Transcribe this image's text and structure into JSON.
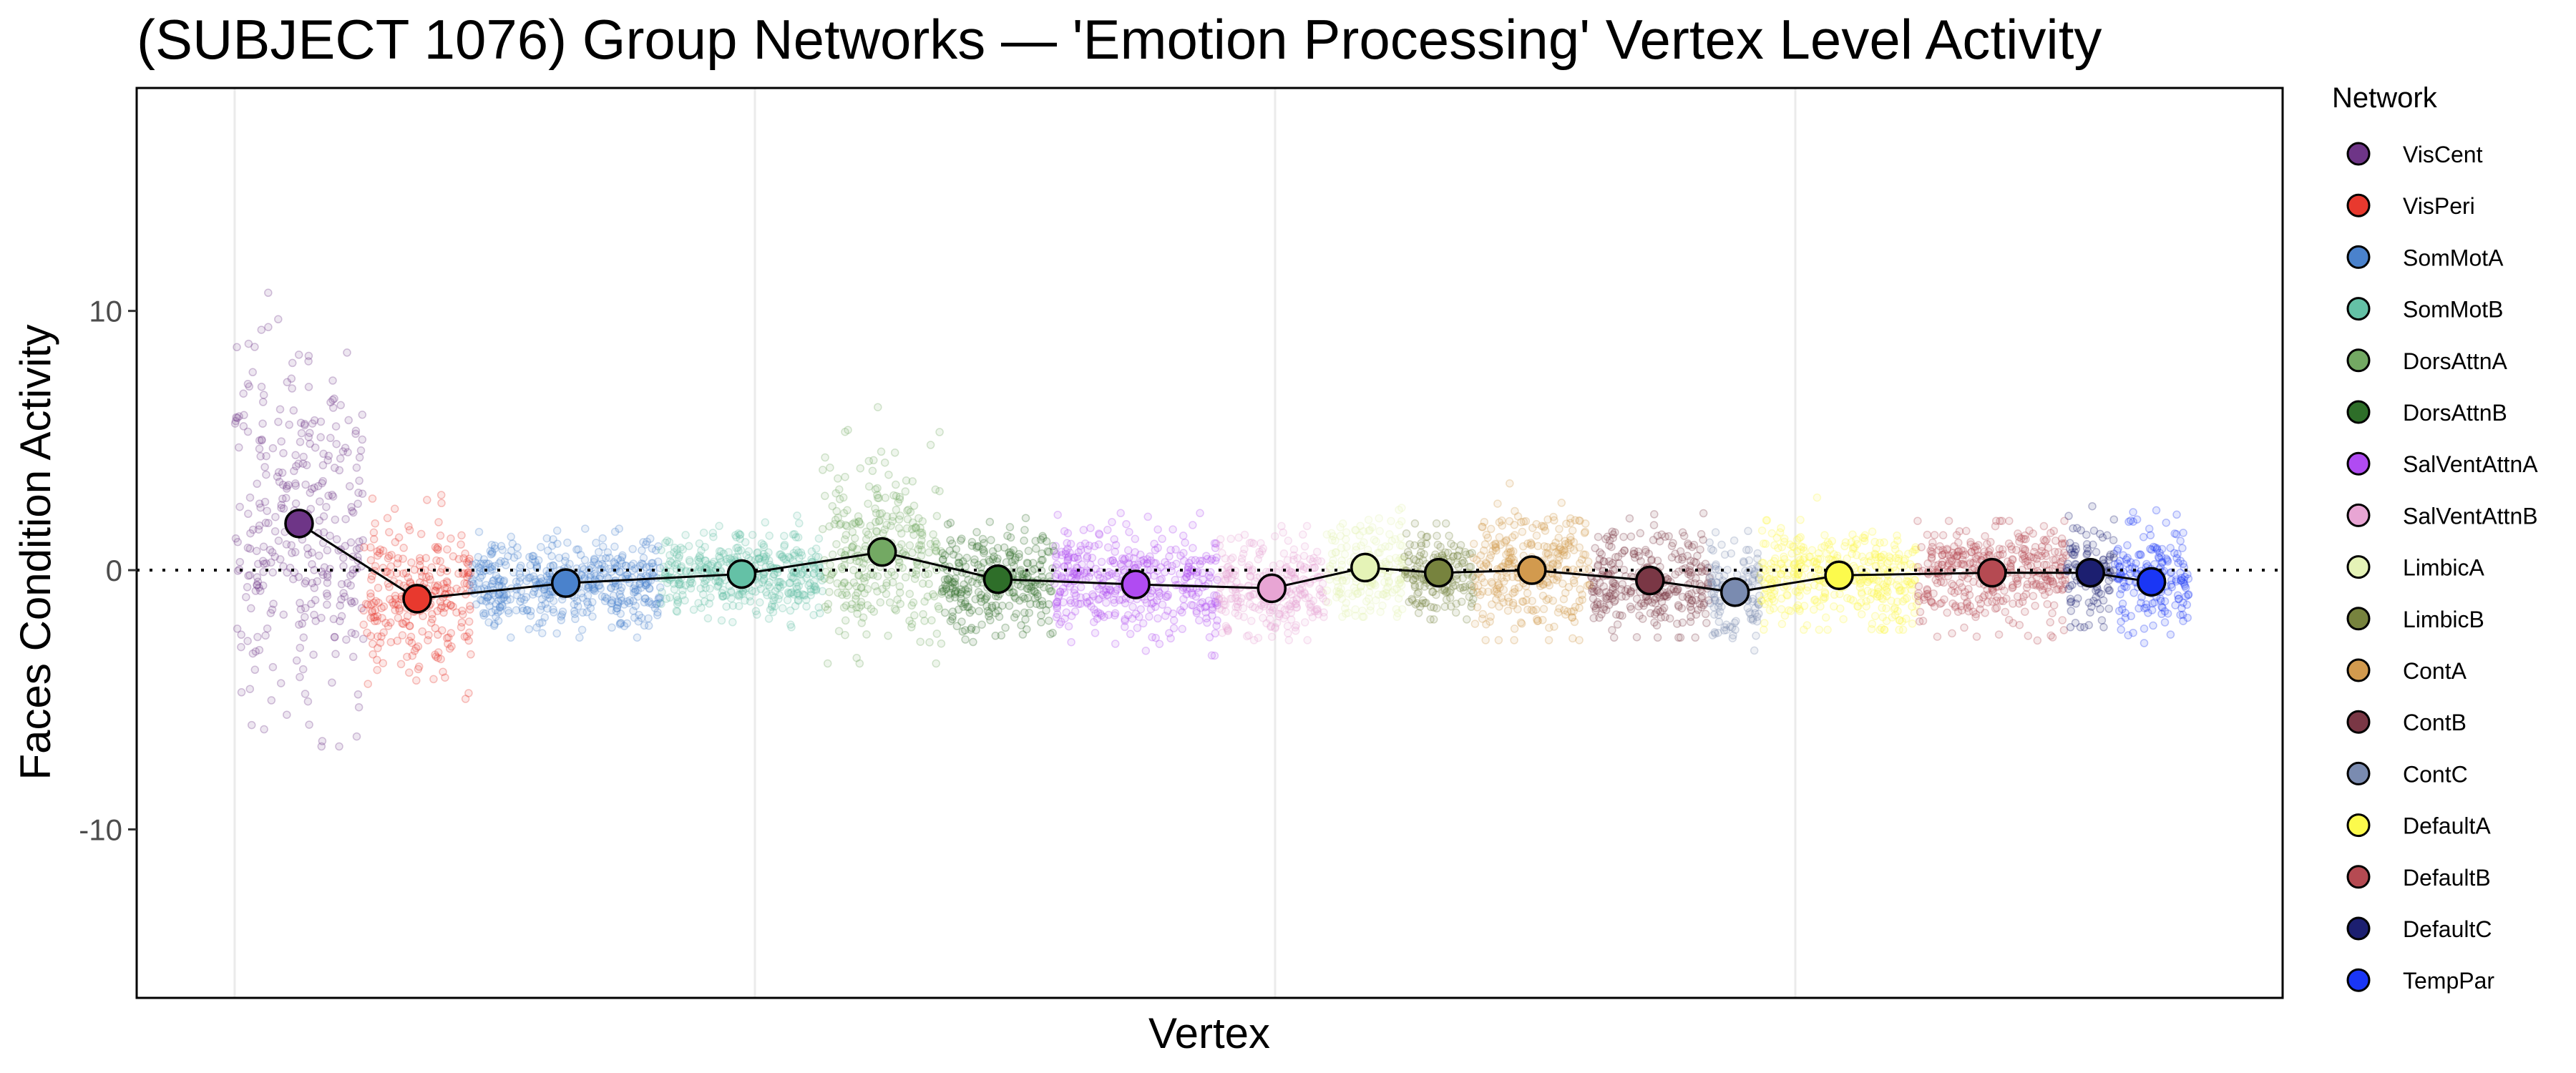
{
  "chart_data": {
    "type": "scatter",
    "title": "(SUBJECT 1076) Group Networks — 'Emotion Processing' Vertex Level Activity",
    "xlabel": "Vertex",
    "ylabel": "Faces Condition Activity",
    "xlim": [
      -1884,
      39367
    ],
    "ylim": [
      -16.5,
      18.6
    ],
    "y_ticks": [
      10,
      0,
      -10
    ],
    "y_tick_labels": [
      "10",
      "0",
      "-10"
    ],
    "x_gridlines": [
      0,
      10000,
      20000,
      30000
    ],
    "reference_line": {
      "y": 0,
      "style": "dotted"
    },
    "grid": "vertical major only",
    "legend": {
      "title": "Network",
      "position": "right"
    },
    "series": [
      {
        "name": "VisCent",
        "color": "#6E3587",
        "vertex_range": [
          0,
          2476
        ],
        "mean": 1.8,
        "sd": 3.6,
        "min": -6.8,
        "max": 10.7
      },
      {
        "name": "VisPeri",
        "color": "#E8392E",
        "vertex_range": [
          2476,
          4540
        ],
        "mean": -1.1,
        "sd": 1.5,
        "min": -5.5,
        "max": 2.9
      },
      {
        "name": "SomMotA",
        "color": "#4A82CC",
        "vertex_range": [
          4540,
          8190
        ],
        "mean": -0.5,
        "sd": 0.8,
        "min": -2.6,
        "max": 1.6
      },
      {
        "name": "SomMotB",
        "color": "#64C1A6",
        "vertex_range": [
          8190,
          11300
        ],
        "mean": -0.15,
        "sd": 0.8,
        "min": -2.2,
        "max": 2.1
      },
      {
        "name": "DorsAttnA",
        "color": "#73A963",
        "vertex_range": [
          11300,
          13590
        ],
        "mean": 0.7,
        "sd": 1.8,
        "min": -3.6,
        "max": 6.7
      },
      {
        "name": "DorsAttnB",
        "color": "#2E6E29",
        "vertex_range": [
          13590,
          15750
        ],
        "mean": -0.35,
        "sd": 1.0,
        "min": -2.8,
        "max": 2.1
      },
      {
        "name": "SalVentAttnA",
        "color": "#B04BF2",
        "vertex_range": [
          15750,
          18890
        ],
        "mean": -0.55,
        "sd": 1.0,
        "min": -3.3,
        "max": 2.2
      },
      {
        "name": "SalVentAttnB",
        "color": "#E8A5D4",
        "vertex_range": [
          18890,
          20980
        ],
        "mean": -0.7,
        "sd": 0.9,
        "min": -2.7,
        "max": 1.7
      },
      {
        "name": "LimbicA",
        "color": "#E5F3B7",
        "vertex_range": [
          20980,
          22480
        ],
        "mean": 0.1,
        "sd": 1.0,
        "min": -1.8,
        "max": 5.0
      },
      {
        "name": "LimbicB",
        "color": "#77833E",
        "vertex_range": [
          22480,
          23810
        ],
        "mean": -0.1,
        "sd": 0.8,
        "min": -1.9,
        "max": 1.8
      },
      {
        "name": "ContA",
        "color": "#D29A4E",
        "vertex_range": [
          23810,
          26060
        ],
        "mean": 0.0,
        "sd": 1.2,
        "min": -2.7,
        "max": 3.6
      },
      {
        "name": "ContB",
        "color": "#7A3745",
        "vertex_range": [
          26060,
          28350
        ],
        "mean": -0.4,
        "sd": 1.0,
        "min": -2.6,
        "max": 2.3
      },
      {
        "name": "ContC",
        "color": "#7A8BB0",
        "vertex_range": [
          28350,
          29330
        ],
        "mean": -0.85,
        "sd": 1.0,
        "min": -3.1,
        "max": 2.1
      },
      {
        "name": "DefaultA",
        "color": "#FCFA4C",
        "vertex_range": [
          29330,
          32350
        ],
        "mean": -0.2,
        "sd": 1.0,
        "min": -2.3,
        "max": 2.8
      },
      {
        "name": "DefaultB",
        "color": "#B54A52",
        "vertex_range": [
          32350,
          35210
        ],
        "mean": -0.1,
        "sd": 1.0,
        "min": -3.6,
        "max": 1.9
      },
      {
        "name": "DefaultC",
        "color": "#1C1F70",
        "vertex_range": [
          35210,
          36130
        ],
        "mean": -0.1,
        "sd": 1.0,
        "min": -2.2,
        "max": 3.7
      },
      {
        "name": "TempPar",
        "color": "#1A36F5",
        "vertex_range": [
          36130,
          37560
        ],
        "mean": -0.45,
        "sd": 1.1,
        "min": -3.6,
        "max": 2.6
      }
    ]
  }
}
